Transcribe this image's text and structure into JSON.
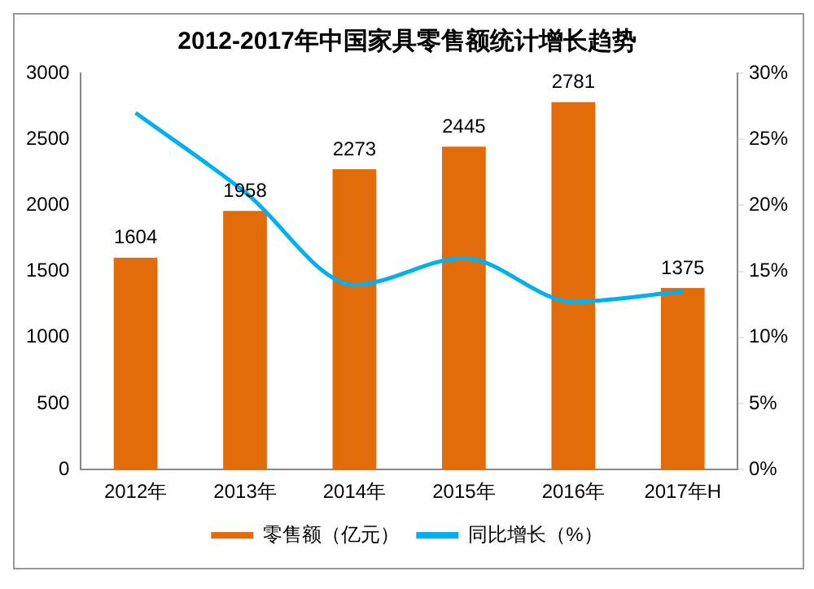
{
  "chart_data": {
    "type": "bar",
    "title": "2012-2017年中国家具零售额统计增长趋势",
    "categories": [
      "2012年",
      "2013年",
      "2014年",
      "2015年",
      "2016年",
      "2017年H"
    ],
    "series": [
      {
        "name": "零售额（亿元）",
        "color": "#e36c0a",
        "values": [
          1604,
          1958,
          2273,
          2445,
          2781,
          1375
        ],
        "value_labels": [
          "1604",
          "1958",
          "2273",
          "2445",
          "2781",
          "1375"
        ]
      },
      {
        "name": "同比增长（%）",
        "type": "line",
        "axis": "y2",
        "color": "#00b0f0",
        "values": [
          27.0,
          21.0,
          14.0,
          16.0,
          12.7,
          13.5
        ]
      }
    ],
    "ylim": [
      0,
      3000
    ],
    "yticks": [
      0,
      500,
      1000,
      1500,
      2000,
      2500,
      3000
    ],
    "y2lim": [
      0,
      30
    ],
    "y2ticks": [
      {
        "value": 0,
        "label": "0%"
      },
      {
        "value": 5,
        "label": "5%"
      },
      {
        "value": 10,
        "label": "10%"
      },
      {
        "value": 15,
        "label": "15%"
      },
      {
        "value": 20,
        "label": "20%"
      },
      {
        "value": 25,
        "label": "25%"
      },
      {
        "value": 30,
        "label": "30%"
      }
    ],
    "grid": false,
    "legend": "bottom",
    "marker": "none"
  }
}
